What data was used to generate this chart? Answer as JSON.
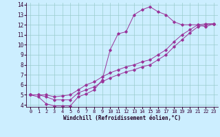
{
  "xlabel": "Windchill (Refroidissement éolien,°C)",
  "background_color": "#cceeff",
  "grid_color": "#99cccc",
  "line_color": "#993399",
  "xlim": [
    -0.5,
    23.5
  ],
  "ylim": [
    3.8,
    14.2
  ],
  "xticks": [
    0,
    1,
    2,
    3,
    4,
    5,
    6,
    7,
    8,
    9,
    10,
    11,
    12,
    13,
    14,
    15,
    16,
    17,
    18,
    19,
    20,
    21,
    22,
    23
  ],
  "yticks": [
    4,
    5,
    6,
    7,
    8,
    9,
    10,
    11,
    12,
    13,
    14
  ],
  "curves": [
    {
      "x": [
        0,
        1,
        2,
        3,
        4,
        5,
        6,
        7,
        8,
        9,
        10,
        11,
        12,
        13,
        14,
        15,
        16,
        17,
        18,
        19,
        20,
        21,
        22,
        23
      ],
      "y": [
        5.0,
        4.8,
        4.1,
        3.9,
        3.9,
        3.9,
        4.8,
        5.1,
        5.5,
        6.5,
        9.5,
        11.1,
        11.3,
        13.0,
        13.5,
        13.8,
        13.3,
        13.0,
        12.3,
        12.0,
        12.0,
        12.0,
        11.8,
        12.1
      ]
    },
    {
      "x": [
        0,
        1,
        2,
        3,
        4,
        5,
        6,
        7,
        8,
        9,
        10,
        11,
        12,
        13,
        14,
        15,
        16,
        17,
        18,
        19,
        20,
        21,
        22,
        23
      ],
      "y": [
        5.0,
        5.0,
        4.8,
        4.5,
        4.5,
        4.5,
        5.2,
        5.5,
        5.8,
        6.3,
        6.7,
        7.0,
        7.3,
        7.5,
        7.8,
        8.0,
        8.5,
        9.0,
        9.8,
        10.5,
        11.2,
        11.8,
        12.0,
        12.1
      ]
    },
    {
      "x": [
        0,
        1,
        2,
        3,
        4,
        5,
        6,
        7,
        8,
        9,
        10,
        11,
        12,
        13,
        14,
        15,
        16,
        17,
        18,
        19,
        20,
        21,
        22,
        23
      ],
      "y": [
        5.0,
        5.0,
        5.0,
        4.8,
        4.9,
        5.0,
        5.5,
        6.0,
        6.3,
        6.8,
        7.2,
        7.5,
        7.8,
        8.0,
        8.3,
        8.5,
        9.0,
        9.5,
        10.3,
        11.0,
        11.5,
        12.0,
        12.1,
        12.1
      ]
    }
  ]
}
